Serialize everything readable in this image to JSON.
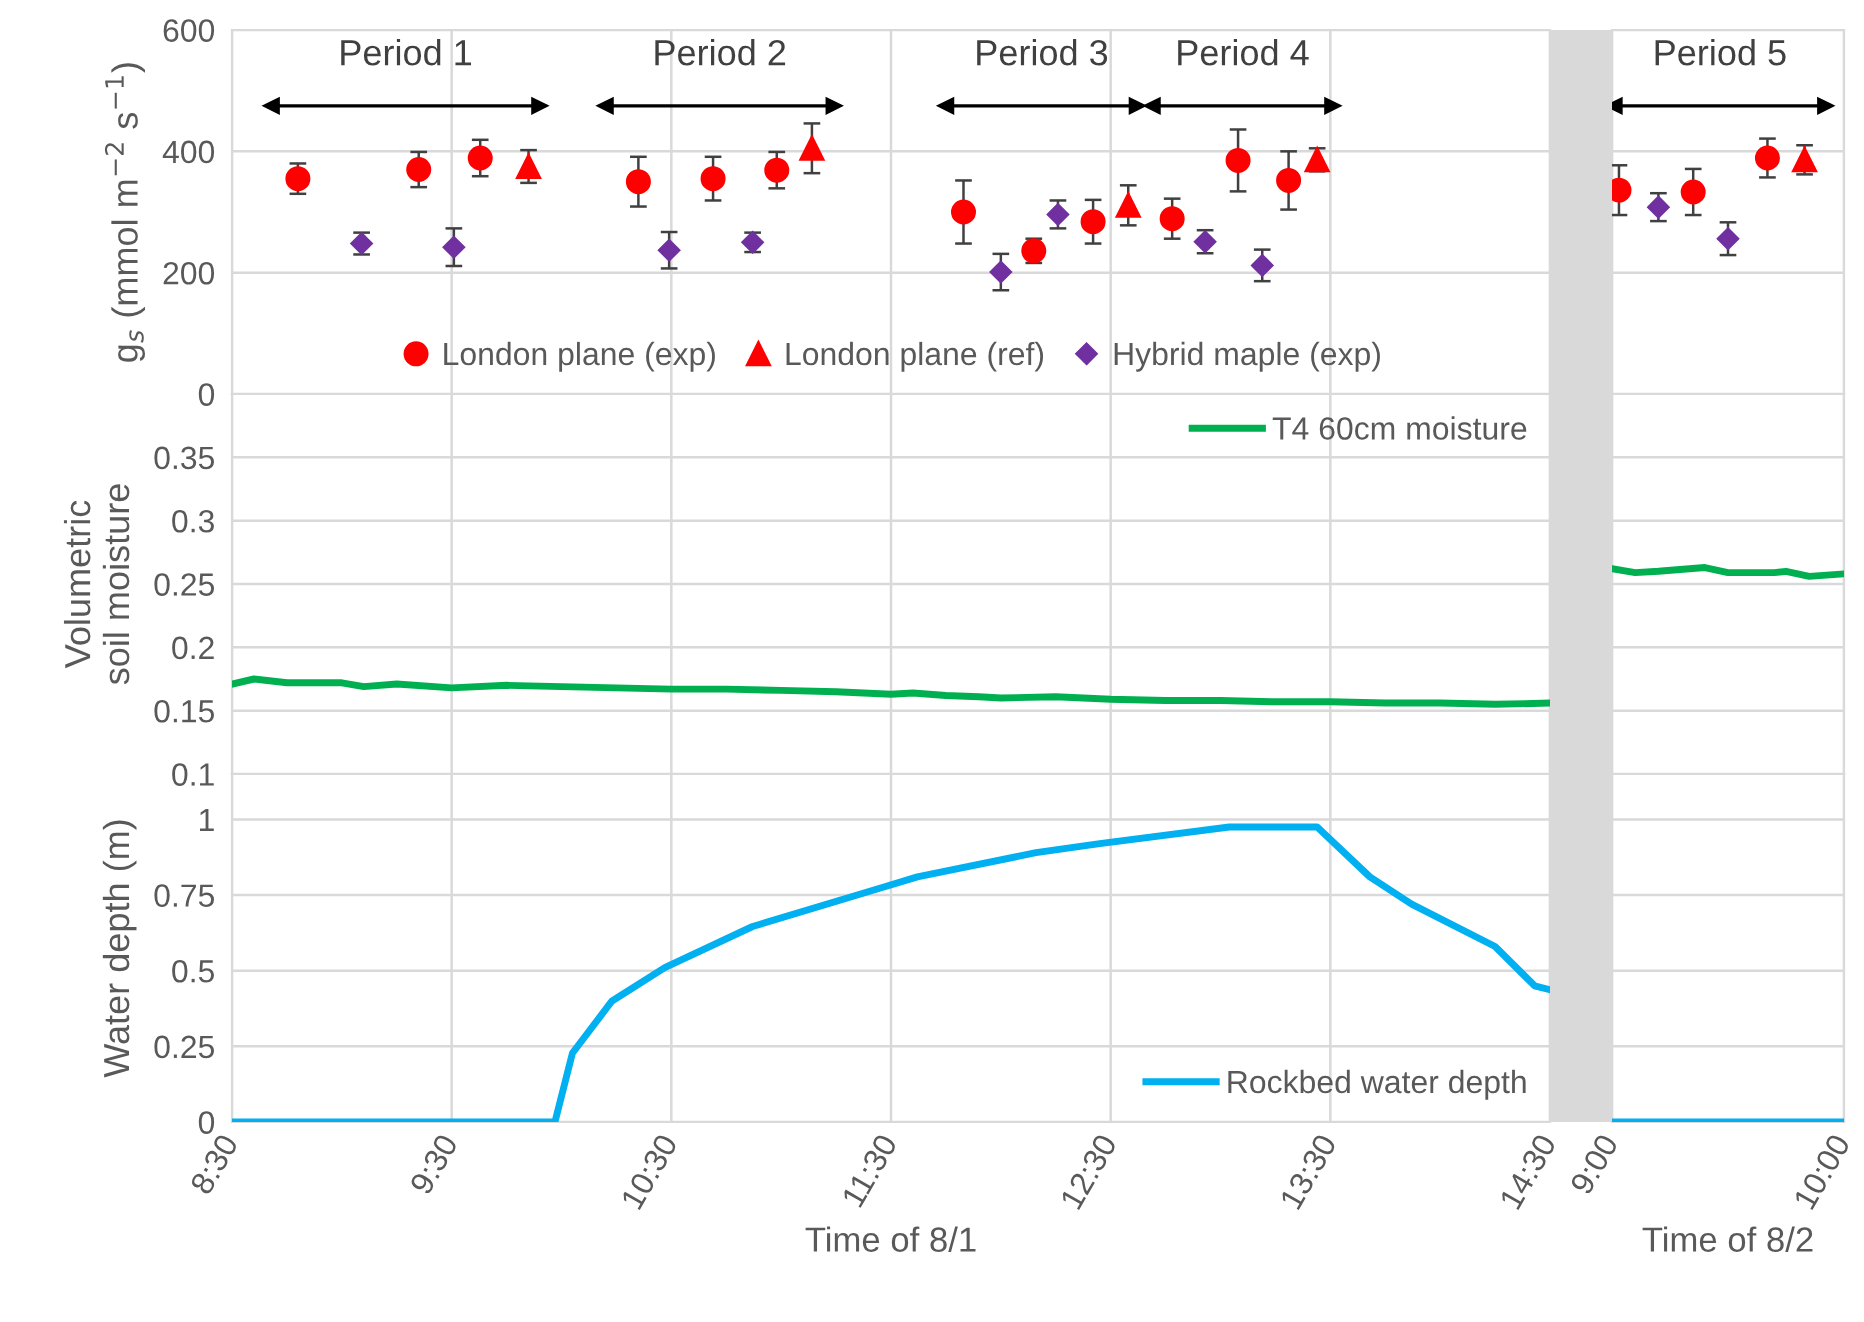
{
  "chart_data": [
    {
      "type": "scatter",
      "ylabel": "g$_{s}$ (mmol m$^{−2}$ s$^{−1}$)",
      "xlim": [
        8.5,
        14.5
      ],
      "xticks": [
        8.5,
        9.5,
        10.5,
        11.5,
        12.5,
        13.5,
        14.5
      ],
      "ylim": [
        0,
        600
      ],
      "yticks": [
        0,
        200,
        400,
        600
      ],
      "grid": true,
      "legend": "bottom",
      "tick_labels": "y",
      "annotations": [
        "Period 1",
        "Period 2",
        "Period 3",
        "Period 4"
      ],
      "series": [
        {
          "type": "line",
          "color": "#000000",
          "marker": "triangle",
          "x": [
            8.68,
            9.9
          ],
          "values": [
            475,
            475
          ]
        },
        {
          "type": "line",
          "color": "#000000",
          "marker": "triangle",
          "x": [
            10.2,
            11.24
          ],
          "values": [
            475,
            475
          ]
        },
        {
          "type": "line",
          "color": "#000000",
          "marker": "triangle",
          "x": [
            11.75,
            12.62
          ],
          "values": [
            475,
            475
          ]
        },
        {
          "type": "line",
          "color": "#000000",
          "marker": "triangle",
          "x": [
            12.69,
            13.51
          ],
          "values": [
            475,
            475
          ]
        },
        {
          "name": "London plane (exp)",
          "color": "#ff0000",
          "marker": "circle",
          "x": [
            8.8,
            9.35,
            9.63,
            10.35,
            10.69,
            10.98,
            11.83,
            12.15,
            12.42,
            12.78,
            13.08,
            13.31
          ],
          "values": [
            355,
            370,
            389,
            350,
            355,
            369,
            300,
            236,
            284,
            289,
            385,
            352
          ],
          "errors": [
            25,
            29,
            30,
            41,
            36,
            30,
            52,
            20,
            36,
            33,
            51,
            48
          ]
        },
        {
          "name": "London plane (ref)",
          "color": "#ff0000",
          "marker": "triangle",
          "x": [
            9.85,
            11.14,
            12.58,
            13.44
          ],
          "values": [
            375,
            405,
            311,
            386
          ],
          "errors": [
            27,
            41,
            33,
            19
          ]
        },
        {
          "name": "Hybrid maple (exp)",
          "color": "#7030a0",
          "marker": "diamond",
          "x": [
            9.09,
            9.51,
            10.49,
            10.87,
            12.0,
            12.26,
            12.93,
            13.19
          ],
          "values": [
            248,
            242,
            237,
            250,
            201,
            296,
            251,
            212
          ],
          "errors": [
            18,
            31,
            30,
            16,
            30,
            23,
            19,
            26
          ]
        }
      ]
    },
    {
      "type": "scatter",
      "xlim": [
        9,
        10
      ],
      "xticks": [
        9,
        10
      ],
      "ylim": [
        0,
        600
      ],
      "yticks": [
        0,
        200,
        400,
        600
      ],
      "grid": true,
      "tick_labels": false,
      "annotations": [
        "Period 5"
      ],
      "series": [
        {
          "type": "line",
          "color": "#000000",
          "marker": "triangle",
          "x": [
            9.01,
            9.92
          ],
          "values": [
            475,
            475
          ]
        },
        {
          "color": "#ff0000",
          "marker": "circle",
          "x": [
            9.03,
            9.35,
            9.67
          ],
          "values": [
            336,
            333,
            389
          ],
          "errors": [
            41,
            38,
            32
          ]
        },
        {
          "color": "#ff0000",
          "marker": "triangle",
          "x": [
            9.83
          ],
          "values": [
            386
          ],
          "errors": [
            24
          ]
        },
        {
          "color": "#7030a0",
          "marker": "diamond",
          "x": [
            9.2,
            9.5
          ],
          "values": [
            308,
            256
          ],
          "errors": [
            23,
            27
          ]
        }
      ]
    },
    {
      "type": "line",
      "ylabel": "Volumetric\nsoil moisture",
      "xlim": [
        8.5,
        14.5
      ],
      "xticks": [
        8.5,
        9.5,
        10.5,
        11.5,
        12.5,
        13.5,
        14.5
      ],
      "ylim": [
        0.1,
        0.4
      ],
      "yticks": [
        0.1,
        0.15,
        0.2,
        0.25,
        0.3,
        0.35
      ],
      "grid": true,
      "legend": "top right",
      "tick_labels": "y",
      "series": [
        {
          "name": "T4 60cm moisture",
          "color": "#00b050",
          "x": [
            8.5,
            8.6,
            8.75,
            9.0,
            9.1,
            9.25,
            9.5,
            9.75,
            10.0,
            10.25,
            10.5,
            10.75,
            11.0,
            11.25,
            11.5,
            11.6,
            11.75,
            11.9,
            12.0,
            12.25,
            12.5,
            12.75,
            13.0,
            13.25,
            13.5,
            13.75,
            14.0,
            14.25,
            14.5
          ],
          "values": [
            0.171,
            0.175,
            0.172,
            0.172,
            0.169,
            0.171,
            0.168,
            0.17,
            0.169,
            0.168,
            0.167,
            0.167,
            0.166,
            0.165,
            0.163,
            0.164,
            0.162,
            0.161,
            0.16,
            0.161,
            0.159,
            0.158,
            0.158,
            0.157,
            0.157,
            0.156,
            0.156,
            0.155,
            0.156
          ]
        }
      ]
    },
    {
      "type": "line",
      "xlim": [
        9,
        10
      ],
      "xticks": [
        9,
        10
      ],
      "ylim": [
        0.1,
        0.4
      ],
      "yticks": [
        0.1,
        0.15,
        0.2,
        0.25,
        0.3,
        0.35
      ],
      "grid": true,
      "tick_labels": false,
      "series": [
        {
          "color": "#00b050",
          "x": [
            9.0,
            9.1,
            9.2,
            9.4,
            9.5,
            9.7,
            9.75,
            9.85,
            10.0
          ],
          "values": [
            0.262,
            0.259,
            0.26,
            0.263,
            0.259,
            0.259,
            0.26,
            0.256,
            0.258
          ]
        }
      ]
    },
    {
      "type": "line",
      "xlabel": "Time of 8/1",
      "ylabel": "Water depth (m)",
      "xlim": [
        8.5,
        14.5
      ],
      "xticks": [
        {
          "value": 8.5,
          "label": "8:30"
        },
        {
          "value": 9.5,
          "label": "9:30"
        },
        {
          "value": 10.5,
          "label": "10:30"
        },
        {
          "value": 11.5,
          "label": "11:30"
        },
        {
          "value": 12.5,
          "label": "12:30"
        },
        {
          "value": 13.5,
          "label": "13:30"
        },
        {
          "value": 14.5,
          "label": "14:30"
        }
      ],
      "ylim": [
        0,
        1.15
      ],
      "yticks": [
        0,
        0.25,
        0.5,
        0.75,
        1
      ],
      "grid": true,
      "legend": "bottom right",
      "series": [
        {
          "name": "Rockbed water depth",
          "color": "#00b0f0",
          "x": [
            8.5,
            9.97,
            10.05,
            10.23,
            10.47,
            10.87,
            11.46,
            11.62,
            12.16,
            12.45,
            13.04,
            13.44,
            13.68,
            13.87,
            14.25,
            14.43,
            14.5
          ],
          "values": [
            0,
            0,
            0.228,
            0.4,
            0.51,
            0.646,
            0.775,
            0.81,
            0.89,
            0.92,
            0.975,
            0.975,
            0.81,
            0.72,
            0.58,
            0.45,
            0.437
          ]
        }
      ]
    },
    {
      "type": "line",
      "xlabel": "Time of 8/2",
      "xlim": [
        9,
        10
      ],
      "xticks": [
        {
          "value": 9,
          "label": "9:00"
        },
        {
          "value": 10,
          "label": "10:00"
        }
      ],
      "ylim": [
        0,
        1.15
      ],
      "yticks": [
        0,
        0.25,
        0.5,
        0.75,
        1
      ],
      "grid": true,
      "tick_labels": "x",
      "series": [
        {
          "color": "#00b0f0",
          "x": [
            9.0,
            10.0
          ],
          "values": [
            0,
            0
          ]
        }
      ]
    }
  ]
}
